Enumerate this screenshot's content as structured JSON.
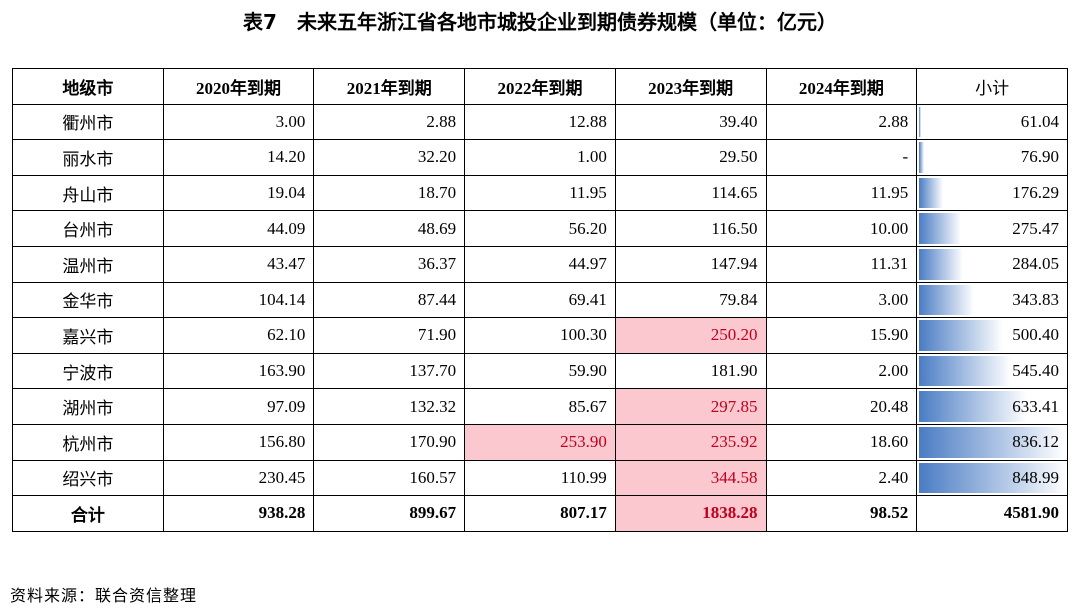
{
  "title": "表7　未来五年浙江省各地市城投企业到期债券规模（单位：亿元）",
  "table": {
    "header": [
      "地级市",
      "2020年到期",
      "2021年到期",
      "2022年到期",
      "2023年到期",
      "2024年到期",
      "小计"
    ],
    "highlight_color": "#fac8ce",
    "bar_color": "#4a7cc4",
    "rows": [
      [
        "衢州市",
        "3.00",
        "2.88",
        "12.88",
        "39.40",
        "2.88",
        "61.04"
      ],
      [
        "丽水市",
        "14.20",
        "32.20",
        "1.00",
        "29.50",
        "-",
        "76.90"
      ],
      [
        "舟山市",
        "19.04",
        "18.70",
        "11.95",
        "114.65",
        "11.95",
        "176.29"
      ],
      [
        "台州市",
        "44.09",
        "48.69",
        "56.20",
        "116.50",
        "10.00",
        "275.47"
      ],
      [
        "温州市",
        "43.47",
        "36.37",
        "44.97",
        "147.94",
        "11.31",
        "284.05"
      ],
      [
        "金华市",
        "104.14",
        "87.44",
        "69.41",
        "79.84",
        "3.00",
        "343.83"
      ],
      [
        "嘉兴市",
        "62.10",
        "71.90",
        "100.30",
        {
          "text": "250.20",
          "highlight": true
        },
        "15.90",
        "500.40"
      ],
      [
        "宁波市",
        "163.90",
        "137.70",
        "59.90",
        "181.90",
        "2.00",
        "545.40"
      ],
      [
        "湖州市",
        "97.09",
        "132.32",
        "85.67",
        {
          "text": "297.85",
          "highlight": true
        },
        "20.48",
        "633.41"
      ],
      [
        "杭州市",
        "156.80",
        "170.90",
        {
          "text": "253.90",
          "highlight": true
        },
        {
          "text": "235.92",
          "highlight": true
        },
        "18.60",
        "836.12"
      ],
      [
        "绍兴市",
        "230.45",
        "160.57",
        "110.99",
        {
          "text": "344.58",
          "highlight": true
        },
        "2.40",
        "848.99"
      ]
    ],
    "total": [
      "合计",
      "938.28",
      "899.67",
      "807.17",
      {
        "text": "1838.28",
        "highlight": true
      },
      "98.52",
      "4581.90"
    ]
  },
  "source": "资料来源：联合资信整理"
}
